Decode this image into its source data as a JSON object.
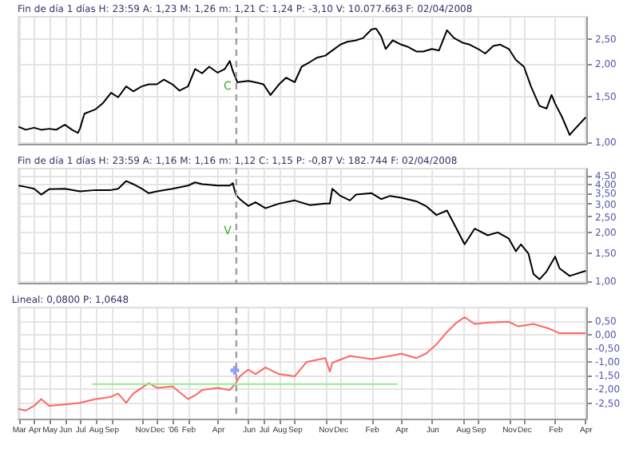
{
  "chart_data": [
    {
      "type": "line",
      "title": "Fin de día 1 días H: 23:59 A: 1,23 M: 1,26 m: 1,21 C: 1,24 P: -3,10 V: 10.077.663 F: 02/04/2008",
      "log": "y",
      "grid": true,
      "tick_labels": "y",
      "xlim": [
        "2005-02-27",
        "2008-04-03"
      ],
      "xticks": [
        {
          "value": "2005-03-01",
          "label": null
        },
        {
          "value": "2005-04-01",
          "label": null
        },
        {
          "value": "2005-05-01",
          "label": null
        },
        {
          "value": "2005-06-01",
          "label": null
        },
        {
          "value": "2005-07-01",
          "label": null
        },
        {
          "value": "2005-08-01",
          "label": null
        },
        {
          "value": "2005-09-01",
          "label": null
        },
        {
          "value": "2005-11-01",
          "label": null
        },
        {
          "value": "2005-12-01",
          "label": null
        },
        {
          "value": "2006-01-01",
          "label": null
        },
        {
          "value": "2006-02-01",
          "label": null
        },
        {
          "value": "2006-04-01",
          "label": null
        },
        {
          "value": "2006-06-01",
          "label": null
        },
        {
          "value": "2006-07-01",
          "label": null
        },
        {
          "value": "2006-08-01",
          "label": null
        },
        {
          "value": "2006-09-01",
          "label": null
        },
        {
          "value": "2006-11-01",
          "label": null
        },
        {
          "value": "2006-12-01",
          "label": null
        },
        {
          "value": "2007-02-01",
          "label": null
        },
        {
          "value": "2007-04-01",
          "label": null
        },
        {
          "value": "2007-06-01",
          "label": null
        },
        {
          "value": "2007-08-01",
          "label": null
        },
        {
          "value": "2007-09-01",
          "label": null
        },
        {
          "value": "2007-11-01",
          "label": null
        },
        {
          "value": "2007-12-01",
          "label": null
        },
        {
          "value": "2008-02-01",
          "label": null
        },
        {
          "value": "2008-04-01",
          "label": null
        }
      ],
      "ylim": [
        0.98,
        3.04
      ],
      "yticks": [
        {
          "value": 1,
          "label": "1,00"
        },
        {
          "value": 1.5,
          "label": "1,50"
        },
        {
          "value": 2,
          "label": "2,00"
        },
        {
          "value": 2.5,
          "label": "2,50"
        }
      ],
      "ref_lines": [
        {
          "axis": "x",
          "value": "2006-05-08",
          "color": "#a0a0a0",
          "line_style": "dashed"
        }
      ],
      "annotations": [
        "C"
      ],
      "series": [
        {
          "type": "line",
          "color": "#000000",
          "x": [
            "2005-03-01",
            "2005-03-15",
            "2005-04-01",
            "2005-04-15",
            "2005-05-01",
            "2005-05-15",
            "2005-06-01",
            "2005-06-15",
            "2005-06-27",
            "2005-07-01",
            "2005-07-10",
            "2005-08-01",
            "2005-08-15",
            "2005-09-01",
            "2005-09-15",
            "2005-10-01",
            "2005-10-15",
            "2005-11-01",
            "2005-11-15",
            "2005-12-01",
            "2005-12-15",
            "2006-01-01",
            "2006-01-15",
            "2006-02-01",
            "2006-02-15",
            "2006-03-01",
            "2006-03-15",
            "2006-04-01",
            "2006-04-15",
            "2006-04-25",
            "2006-05-01",
            "2006-05-10",
            "2006-06-01",
            "2006-06-15",
            "2006-07-01",
            "2006-07-15",
            "2006-08-01",
            "2006-08-15",
            "2006-09-01",
            "2006-09-15",
            "2006-10-01",
            "2006-10-15",
            "2006-11-01",
            "2006-11-15",
            "2006-12-01",
            "2006-12-15",
            "2007-01-01",
            "2007-01-15",
            "2007-02-01",
            "2007-02-10",
            "2007-02-20",
            "2007-03-01",
            "2007-03-15",
            "2007-04-01",
            "2007-04-15",
            "2007-05-01",
            "2007-05-15",
            "2007-06-01",
            "2007-06-15",
            "2007-07-01",
            "2007-07-15",
            "2007-08-01",
            "2007-08-15",
            "2007-09-01",
            "2007-09-15",
            "2007-10-01",
            "2007-10-15",
            "2007-11-01",
            "2007-11-15",
            "2007-12-01",
            "2007-12-15",
            "2008-01-01",
            "2008-01-15",
            "2008-01-25",
            "2008-02-01",
            "2008-02-15",
            "2008-03-01",
            "2008-03-10",
            "2008-04-02"
          ],
          "values": [
            1.14,
            1.11,
            1.13,
            1.11,
            1.12,
            1.11,
            1.16,
            1.11,
            1.08,
            1.12,
            1.28,
            1.33,
            1.4,
            1.54,
            1.48,
            1.63,
            1.56,
            1.63,
            1.66,
            1.66,
            1.73,
            1.66,
            1.57,
            1.63,
            1.9,
            1.83,
            1.94,
            1.84,
            1.9,
            2.04,
            1.87,
            1.69,
            1.71,
            1.69,
            1.66,
            1.51,
            1.66,
            1.76,
            1.69,
            1.94,
            2.02,
            2.1,
            2.14,
            2.24,
            2.36,
            2.42,
            2.45,
            2.5,
            2.7,
            2.72,
            2.54,
            2.27,
            2.45,
            2.36,
            2.31,
            2.22,
            2.22,
            2.27,
            2.24,
            2.68,
            2.5,
            2.4,
            2.36,
            2.27,
            2.18,
            2.33,
            2.36,
            2.27,
            2.06,
            1.94,
            1.63,
            1.37,
            1.34,
            1.51,
            1.4,
            1.24,
            1.06,
            1.11,
            1.24
          ]
        }
      ]
    },
    {
      "type": "line",
      "title": "Fin de día 1 días H: 23:59 A: 1,16 M: 1,16 m: 1,12 C: 1,15 P: -0,87 V: 182.744 F: 02/04/2008",
      "log": "y",
      "grid": true,
      "tick_labels": "y",
      "xlim": [
        "2005-02-27",
        "2008-04-03"
      ],
      "xticks": [
        {
          "value": "2005-03-01",
          "label": null
        },
        {
          "value": "2005-04-01",
          "label": null
        },
        {
          "value": "2005-05-01",
          "label": null
        },
        {
          "value": "2005-06-01",
          "label": null
        },
        {
          "value": "2005-07-01",
          "label": null
        },
        {
          "value": "2005-08-01",
          "label": null
        },
        {
          "value": "2005-09-01",
          "label": null
        },
        {
          "value": "2005-11-01",
          "label": null
        },
        {
          "value": "2005-12-01",
          "label": null
        },
        {
          "value": "2006-01-01",
          "label": null
        },
        {
          "value": "2006-02-01",
          "label": null
        },
        {
          "value": "2006-04-01",
          "label": null
        },
        {
          "value": "2006-06-01",
          "label": null
        },
        {
          "value": "2006-07-01",
          "label": null
        },
        {
          "value": "2006-08-01",
          "label": null
        },
        {
          "value": "2006-09-01",
          "label": null
        },
        {
          "value": "2006-11-01",
          "label": null
        },
        {
          "value": "2006-12-01",
          "label": null
        },
        {
          "value": "2007-02-01",
          "label": null
        },
        {
          "value": "2007-04-01",
          "label": null
        },
        {
          "value": "2007-06-01",
          "label": null
        },
        {
          "value": "2007-08-01",
          "label": null
        },
        {
          "value": "2007-09-01",
          "label": null
        },
        {
          "value": "2007-11-01",
          "label": null
        },
        {
          "value": "2007-12-01",
          "label": null
        },
        {
          "value": "2008-02-01",
          "label": null
        },
        {
          "value": "2008-04-01",
          "label": null
        }
      ],
      "ylim": [
        0.97,
        5.0
      ],
      "yticks": [
        {
          "value": 1,
          "label": "1,00"
        },
        {
          "value": 1.5,
          "label": "1,50"
        },
        {
          "value": 2,
          "label": "2,00"
        },
        {
          "value": 2.5,
          "label": "2,50"
        },
        {
          "value": 3,
          "label": "3,00"
        },
        {
          "value": 3.5,
          "label": "3,50"
        },
        {
          "value": 4,
          "label": "4,00"
        },
        {
          "value": 4.5,
          "label": "4,50"
        }
      ],
      "ref_lines": [
        {
          "axis": "x",
          "value": "2006-05-08",
          "color": "#a0a0a0",
          "line_style": "dashed"
        }
      ],
      "annotations": [
        "V"
      ],
      "series": [
        {
          "type": "line",
          "color": "#000000",
          "x": [
            "2005-03-01",
            "2005-03-15",
            "2005-04-01",
            "2005-04-15",
            "2005-05-01",
            "2005-06-01",
            "2005-07-01",
            "2005-08-01",
            "2005-09-01",
            "2005-09-15",
            "2005-10-01",
            "2005-10-15",
            "2005-11-01",
            "2005-11-15",
            "2005-12-01",
            "2006-01-01",
            "2006-02-01",
            "2006-02-15",
            "2006-03-01",
            "2006-04-01",
            "2006-04-25",
            "2006-05-01",
            "2006-05-07",
            "2006-05-15",
            "2006-06-01",
            "2006-06-15",
            "2006-07-05",
            "2006-08-01",
            "2006-09-01",
            "2006-10-01",
            "2006-11-01",
            "2006-11-10",
            "2006-11-15",
            "2006-12-01",
            "2006-12-20",
            "2007-01-01",
            "2007-02-01",
            "2007-02-20",
            "2007-03-10",
            "2007-04-01",
            "2007-05-01",
            "2007-05-20",
            "2007-06-10",
            "2007-07-01",
            "2007-07-20",
            "2007-08-05",
            "2007-08-25",
            "2007-09-20",
            "2007-10-10",
            "2007-11-01",
            "2007-11-15",
            "2007-11-25",
            "2007-12-10",
            "2007-12-20",
            "2008-01-01",
            "2008-01-15",
            "2008-02-01",
            "2008-02-10",
            "2008-03-01",
            "2008-04-02"
          ],
          "values": [
            3.88,
            3.81,
            3.71,
            3.41,
            3.69,
            3.71,
            3.57,
            3.64,
            3.64,
            3.71,
            4.14,
            3.96,
            3.71,
            3.48,
            3.57,
            3.71,
            3.88,
            4.06,
            3.96,
            3.88,
            3.88,
            4.01,
            3.41,
            3.2,
            2.9,
            3.06,
            2.81,
            3.0,
            3.14,
            2.94,
            3.0,
            3.0,
            3.71,
            3.35,
            3.14,
            3.41,
            3.48,
            3.2,
            3.35,
            3.26,
            3.1,
            2.9,
            2.55,
            2.72,
            2.1,
            1.68,
            2.1,
            1.91,
            1.99,
            1.82,
            1.52,
            1.68,
            1.47,
            1.1,
            1.02,
            1.14,
            1.41,
            1.19,
            1.07,
            1.15
          ]
        }
      ]
    },
    {
      "type": "line",
      "title": "Lineal: 0,0800 P: 1,0648",
      "grid": true,
      "xlim": [
        "2005-02-27",
        "2008-04-03"
      ],
      "xticks": [
        {
          "value": "2005-03-01",
          "label": "Mar"
        },
        {
          "value": "2005-04-01",
          "label": "Apr"
        },
        {
          "value": "2005-05-01",
          "label": "May"
        },
        {
          "value": "2005-06-01",
          "label": "Jun"
        },
        {
          "value": "2005-07-01",
          "label": "Jul"
        },
        {
          "value": "2005-08-01",
          "label": "Aug"
        },
        {
          "value": "2005-09-01",
          "label": "Sep"
        },
        {
          "value": "2005-11-01",
          "label": "Nov"
        },
        {
          "value": "2005-12-01",
          "label": "Dec"
        },
        {
          "value": "2006-01-01",
          "label": "'06"
        },
        {
          "value": "2006-02-01",
          "label": "Feb"
        },
        {
          "value": "2006-04-01",
          "label": "Apr"
        },
        {
          "value": "2006-06-01",
          "label": "Jun"
        },
        {
          "value": "2006-07-01",
          "label": "Jul"
        },
        {
          "value": "2006-08-01",
          "label": "Aug"
        },
        {
          "value": "2006-09-01",
          "label": "Sep"
        },
        {
          "value": "2006-11-01",
          "label": "Nov"
        },
        {
          "value": "2006-12-01",
          "label": "Dec"
        },
        {
          "value": "2007-02-01",
          "label": "Feb"
        },
        {
          "value": "2007-04-01",
          "label": "Apr"
        },
        {
          "value": "2007-06-01",
          "label": "Jun"
        },
        {
          "value": "2007-08-01",
          "label": "Aug"
        },
        {
          "value": "2007-09-01",
          "label": "Sep"
        },
        {
          "value": "2007-11-01",
          "label": "Nov"
        },
        {
          "value": "2007-12-01",
          "label": "Dec"
        },
        {
          "value": "2008-02-01",
          "label": "Feb"
        },
        {
          "value": "2008-04-01",
          "label": "Apr"
        }
      ],
      "ylim": [
        -3.1,
        1.0
      ],
      "yticks": [
        {
          "value": 0.5,
          "label": "0,50"
        },
        {
          "value": 0,
          "label": "0,00"
        },
        {
          "value": -0.5,
          "label": "-0,50"
        },
        {
          "value": -1,
          "label": "-1,00"
        },
        {
          "value": -1.5,
          "label": "-1,50"
        },
        {
          "value": -2,
          "label": "-2,00"
        },
        {
          "value": -2.5,
          "label": "-2,50"
        }
      ],
      "ref_lines": [
        {
          "axis": "x",
          "value": "2006-05-08",
          "color": "#a0a0a0",
          "line_style": "dashed"
        }
      ],
      "series": [
        {
          "type": "line",
          "color": "#ff6666",
          "x": [
            "2005-03-01",
            "2005-03-15",
            "2005-04-01",
            "2005-04-15",
            "2005-05-01",
            "2005-06-01",
            "2005-07-01",
            "2005-08-01",
            "2005-09-01",
            "2005-09-15",
            "2005-10-01",
            "2005-10-15",
            "2005-11-01",
            "2005-11-15",
            "2005-12-01",
            "2006-01-01",
            "2006-02-01",
            "2006-02-15",
            "2006-03-01",
            "2006-04-01",
            "2006-04-25",
            "2006-05-07",
            "2006-05-15",
            "2006-06-01",
            "2006-06-15",
            "2006-07-05",
            "2006-08-01",
            "2006-09-01",
            "2006-09-25",
            "2006-11-01",
            "2006-11-10",
            "2006-11-15",
            "2006-12-20",
            "2007-02-01",
            "2007-03-10",
            "2007-04-01",
            "2007-05-01",
            "2007-05-20",
            "2007-06-10",
            "2007-07-01",
            "2007-07-20",
            "2007-08-05",
            "2007-08-25",
            "2007-09-20",
            "2007-11-01",
            "2007-11-20",
            "2007-12-20",
            "2008-01-20",
            "2008-02-10",
            "2008-03-01",
            "2008-04-02"
          ],
          "values": [
            -2.75,
            -2.8,
            -2.63,
            -2.38,
            -2.63,
            -2.58,
            -2.52,
            -2.38,
            -2.3,
            -2.18,
            -2.52,
            -2.18,
            -1.97,
            -1.8,
            -1.97,
            -1.92,
            -2.38,
            -2.25,
            -2.05,
            -1.97,
            -2.05,
            -1.8,
            -1.55,
            -1.3,
            -1.47,
            -1.22,
            -1.47,
            -1.55,
            -1.02,
            -0.88,
            -1.38,
            -1.05,
            -0.8,
            -0.92,
            -0.8,
            -0.72,
            -0.88,
            -0.72,
            -0.38,
            0.08,
            0.42,
            0.62,
            0.37,
            0.42,
            0.45,
            0.28,
            0.37,
            0.2,
            0.03,
            0.03,
            0.03
          ]
        },
        {
          "type": "line",
          "color": "#90ee90",
          "x": [
            "2005-07-25",
            "2007-03-25"
          ],
          "values": [
            -1.83,
            -1.83
          ]
        },
        {
          "type": "scatter",
          "color": "#6677ff",
          "marker": "cross",
          "x": [
            "2006-05-05"
          ],
          "values": [
            -1.33
          ]
        }
      ]
    }
  ]
}
